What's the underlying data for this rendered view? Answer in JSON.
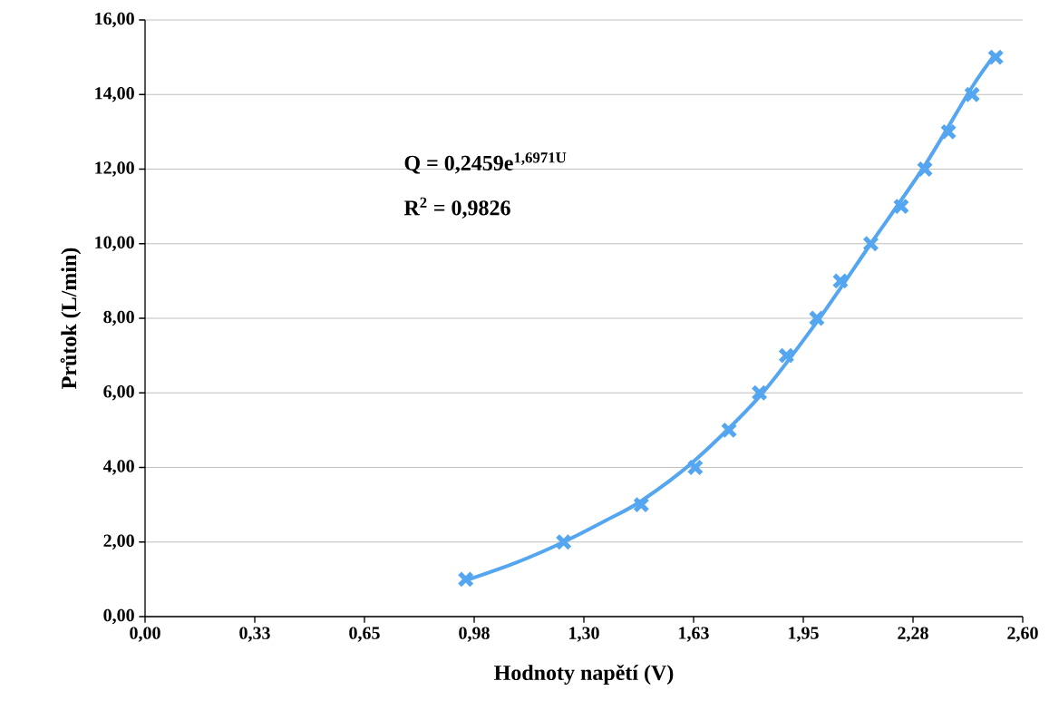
{
  "chart_data": {
    "type": "scatter",
    "xlabel": "Hodnoty napětí (V)",
    "ylabel": "Průtok (L/min)",
    "xlim": [
      0,
      2.6
    ],
    "ylim": [
      0,
      16
    ],
    "xticks": [
      {
        "value": 0,
        "label": "0,00"
      },
      {
        "value": 0.325,
        "label": "0,33"
      },
      {
        "value": 0.65,
        "label": "0,65"
      },
      {
        "value": 0.975,
        "label": "0,98"
      },
      {
        "value": 1.3,
        "label": "1,30"
      },
      {
        "value": 1.625,
        "label": "1,63"
      },
      {
        "value": 1.95,
        "label": "1,95"
      },
      {
        "value": 2.275,
        "label": "2,28"
      },
      {
        "value": 2.6,
        "label": "2,60"
      }
    ],
    "yticks": [
      {
        "value": 0,
        "label": "0,00"
      },
      {
        "value": 2,
        "label": "2,00"
      },
      {
        "value": 4,
        "label": "4,00"
      },
      {
        "value": 6,
        "label": "6,00"
      },
      {
        "value": 8,
        "label": "8,00"
      },
      {
        "value": 10,
        "label": "10,00"
      },
      {
        "value": 12,
        "label": "12,00"
      },
      {
        "value": 14,
        "label": "14,00"
      },
      {
        "value": 16,
        "label": "16,00"
      }
    ],
    "grid": "y",
    "annotations": [
      "Q = 0,2459e$^{1,6971U}$",
      "R$^{2}$ = 0,9826"
    ],
    "series": [
      {
        "color": "#55a6f0",
        "marker": "cross",
        "x": [
          0.95,
          1.24,
          1.47,
          1.63,
          1.73,
          1.82,
          1.9,
          1.99,
          2.06,
          2.15,
          2.24,
          2.31,
          2.38,
          2.45,
          2.52
        ],
        "values": [
          1,
          2,
          3,
          4,
          5,
          6,
          7,
          8,
          9,
          10,
          11,
          12,
          13,
          14,
          15
        ]
      },
      {
        "type": "line",
        "color": "#55a6f0",
        "marker": "none",
        "line_style": "solid",
        "x": [
          0.95,
          1.1,
          1.24,
          1.37,
          1.47,
          1.63,
          1.82,
          1.99,
          2.15,
          2.31,
          2.45,
          2.52
        ],
        "values": [
          0.97,
          1.45,
          2.0,
          2.6,
          3.1,
          4.2,
          5.9,
          7.9,
          10.0,
          12.1,
          14.2,
          15.1
        ]
      }
    ]
  }
}
